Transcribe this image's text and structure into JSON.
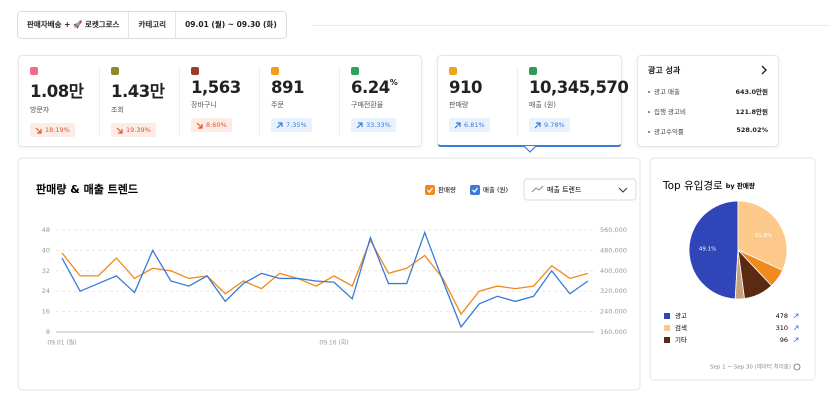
{
  "filters": {
    "channel": "판매자배송 + 🚀 로켓그로스",
    "category": "카테고리",
    "date_range": "09.01 (월) ~ 09.30 (화)"
  },
  "kpi_cards": [
    {
      "items": [
        {
          "value": "1.08만",
          "label": "방문자",
          "change": "18.19%",
          "trend": "down"
        },
        {
          "value": "1.43만",
          "label": "조회",
          "change": "19.39%",
          "trend": "down"
        },
        {
          "value": "1,563",
          "label": "장바구니",
          "change": "8.60%",
          "trend": "down"
        },
        {
          "value": "891",
          "label": "주문",
          "change": "7.35%",
          "trend": "up"
        },
        {
          "value": "6.24",
          "unit": "%",
          "label": "구매전환율",
          "change": "33.33%",
          "trend": "up"
        }
      ]
    },
    {
      "items": [
        {
          "value": "910",
          "label": "판매량",
          "change": "6.81%",
          "trend": "up"
        },
        {
          "value": "10,345,570",
          "label": "매출 (원)",
          "change": "9.78%",
          "trend": "up"
        }
      ]
    }
  ],
  "ad_card": {
    "title": "광고 성과",
    "rows": [
      {
        "label": "광고 매출",
        "value": "643.0만원"
      },
      {
        "label": "집행 광고비",
        "value": "121.8만원"
      },
      {
        "label": "광고수익률",
        "value": "528.02%"
      }
    ]
  },
  "chart_data": [
    {
      "type": "line",
      "title": "판매량 & 매출 트렌드",
      "dropdown": "매출 트렌드",
      "categories": [
        "09.01 (월)",
        null,
        null,
        null,
        null,
        null,
        null,
        null,
        null,
        null,
        null,
        null,
        null,
        null,
        null,
        "09.16 (화)",
        null,
        null,
        null,
        null,
        null,
        null,
        null,
        null,
        null,
        null,
        null,
        null,
        null,
        null
      ],
      "series": [
        {
          "name": "판매량",
          "color": "#f08a1d",
          "values": [
            39,
            30,
            30,
            37,
            29,
            33,
            32,
            29,
            30,
            23,
            28,
            25,
            31,
            29,
            26,
            30,
            26,
            44,
            31,
            33,
            38,
            29,
            15,
            24,
            26,
            25,
            26,
            34,
            29,
            31
          ]
        },
        {
          "name": "매출 (원)",
          "color": "#3a7bd5",
          "axis": "y2",
          "values": [
            450000,
            320000,
            350000,
            380000,
            315000,
            480000,
            360000,
            340000,
            380000,
            280000,
            350000,
            390000,
            370000,
            370000,
            360000,
            355000,
            290000,
            530000,
            350000,
            350000,
            550000,
            360000,
            180000,
            270000,
            300000,
            280000,
            300000,
            400000,
            310000,
            360000
          ]
        }
      ],
      "ylim": [
        8,
        48
      ],
      "yticks": [
        8,
        16,
        24,
        32,
        40,
        48
      ],
      "y2lim": [
        160000,
        560000
      ],
      "y2ticks": [
        {
          "value": 160000,
          "label": "160,000"
        },
        {
          "value": 240000,
          "label": "240,000"
        },
        {
          "value": 320000,
          "label": "320,000"
        },
        {
          "value": 400000,
          "label": "400,000"
        },
        {
          "value": 480000,
          "label": "480,000"
        },
        {
          "value": 560000,
          "label": "560,000"
        }
      ],
      "grid": true
    },
    {
      "type": "pie",
      "title": "Top 유입경로",
      "subtitle": "by 판매량",
      "categories": [
        "광고",
        "검색",
        null,
        "기타",
        null
      ],
      "values": [
        49.1,
        31.8,
        6.2,
        9.9,
        3.0
      ],
      "value_labels": [
        "49.1%",
        "31.8%",
        null,
        null,
        null
      ],
      "counts": [
        478,
        310,
        null,
        96,
        null
      ],
      "colors": [
        "#2f45b8",
        "#fcc98a",
        "#f08a1d",
        "#5a2a12",
        "#c8a27a"
      ],
      "footnote": "Sep 1 ~ Sep 30 (데이터 처리중)"
    }
  ]
}
